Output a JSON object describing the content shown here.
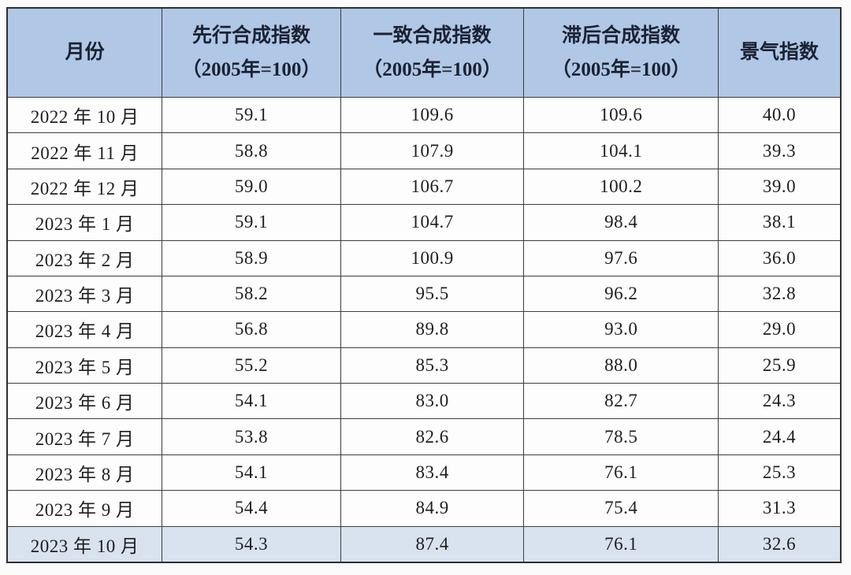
{
  "colors": {
    "header_bg": "#b0c8e5",
    "highlight_row_bg": "#d9e2ef",
    "grid_border": "#3d3d3d",
    "body_bg": "#fdfdfd",
    "header_text": "#1b2233",
    "body_text": "#1e1e1e"
  },
  "table": {
    "columns": [
      {
        "label": "月份",
        "sublabel": ""
      },
      {
        "label": "先行合成指数",
        "sublabel": "（2005年=100）"
      },
      {
        "label": "一致合成指数",
        "sublabel": "（2005年=100）"
      },
      {
        "label": "滞后合成指数",
        "sublabel": "（2005年=100）"
      },
      {
        "label": "景气指数",
        "sublabel": ""
      }
    ],
    "rows": [
      {
        "month": "2022 年 10 月",
        "leading": "59.1",
        "coincident": "109.6",
        "lagging": "109.6",
        "prosperity": "40.0",
        "highlight": false
      },
      {
        "month": "2022 年 11 月",
        "leading": "58.8",
        "coincident": "107.9",
        "lagging": "104.1",
        "prosperity": "39.3",
        "highlight": false
      },
      {
        "month": "2022 年 12 月",
        "leading": "59.0",
        "coincident": "106.7",
        "lagging": "100.2",
        "prosperity": "39.0",
        "highlight": false
      },
      {
        "month": "2023 年 1 月",
        "leading": "59.1",
        "coincident": "104.7",
        "lagging": "98.4",
        "prosperity": "38.1",
        "highlight": false
      },
      {
        "month": "2023 年 2 月",
        "leading": "58.9",
        "coincident": "100.9",
        "lagging": "97.6",
        "prosperity": "36.0",
        "highlight": false
      },
      {
        "month": "2023 年 3 月",
        "leading": "58.2",
        "coincident": "95.5",
        "lagging": "96.2",
        "prosperity": "32.8",
        "highlight": false
      },
      {
        "month": "2023 年 4 月",
        "leading": "56.8",
        "coincident": "89.8",
        "lagging": "93.0",
        "prosperity": "29.0",
        "highlight": false
      },
      {
        "month": "2023 年 5 月",
        "leading": "55.2",
        "coincident": "85.3",
        "lagging": "88.0",
        "prosperity": "25.9",
        "highlight": false
      },
      {
        "month": "2023 年 6 月",
        "leading": "54.1",
        "coincident": "83.0",
        "lagging": "82.7",
        "prosperity": "24.3",
        "highlight": false
      },
      {
        "month": "2023 年 7 月",
        "leading": "53.8",
        "coincident": "82.6",
        "lagging": "78.5",
        "prosperity": "24.4",
        "highlight": false
      },
      {
        "month": "2023 年 8 月",
        "leading": "54.1",
        "coincident": "83.4",
        "lagging": "76.1",
        "prosperity": "25.3",
        "highlight": false
      },
      {
        "month": "2023 年 9 月",
        "leading": "54.4",
        "coincident": "84.9",
        "lagging": "75.4",
        "prosperity": "31.3",
        "highlight": false
      },
      {
        "month": "2023 年 10 月",
        "leading": "54.3",
        "coincident": "87.4",
        "lagging": "76.1",
        "prosperity": "32.6",
        "highlight": true
      }
    ]
  },
  "chart_data": {
    "type": "table",
    "title": "",
    "columns": [
      "月份",
      "先行合成指数（2005年=100）",
      "一致合成指数（2005年=100）",
      "滞后合成指数（2005年=100）",
      "景气指数"
    ],
    "categories": [
      "2022年10月",
      "2022年11月",
      "2022年12月",
      "2023年1月",
      "2023年2月",
      "2023年3月",
      "2023年4月",
      "2023年5月",
      "2023年6月",
      "2023年7月",
      "2023年8月",
      "2023年9月",
      "2023年10月"
    ],
    "series": [
      {
        "name": "先行合成指数（2005年=100）",
        "values": [
          59.1,
          58.8,
          59.0,
          59.1,
          58.9,
          58.2,
          56.8,
          55.2,
          54.1,
          53.8,
          54.1,
          54.4,
          54.3
        ]
      },
      {
        "name": "一致合成指数（2005年=100）",
        "values": [
          109.6,
          107.9,
          106.7,
          104.7,
          100.9,
          95.5,
          89.8,
          85.3,
          83.0,
          82.6,
          83.4,
          84.9,
          87.4
        ]
      },
      {
        "name": "滞后合成指数（2005年=100）",
        "values": [
          109.6,
          104.1,
          100.2,
          98.4,
          97.6,
          96.2,
          93.0,
          88.0,
          82.7,
          78.5,
          76.1,
          75.4,
          76.1
        ]
      },
      {
        "name": "景气指数",
        "values": [
          40.0,
          39.3,
          39.0,
          38.1,
          36.0,
          32.8,
          29.0,
          25.9,
          24.3,
          24.4,
          25.3,
          31.3,
          32.6
        ]
      }
    ],
    "layout_hints": {
      "highlighted_row": "2023年10月",
      "grid": true,
      "header_two_lines": true
    }
  }
}
